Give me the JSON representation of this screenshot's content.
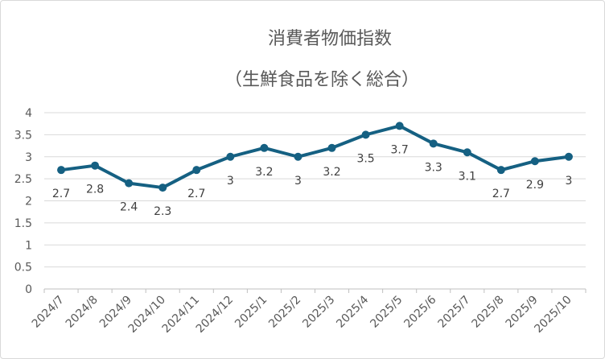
{
  "chart_data": {
    "type": "line",
    "title": [
      "消費者物価指数",
      "（生鮮食品を除く総合）"
    ],
    "categories": [
      "2024/7",
      "2024/8",
      "2024/9",
      "2024/10",
      "2024/11",
      "2024/12",
      "2025/1",
      "2025/2",
      "2025/3",
      "2025/4",
      "2025/5",
      "2025/6",
      "2025/7",
      "2025/8",
      "2025/9",
      "2025/10"
    ],
    "series": [
      {
        "name": "消費者物価指数",
        "values": [
          2.7,
          2.8,
          2.4,
          2.3,
          2.7,
          3,
          3.2,
          3,
          3.2,
          3.5,
          3.7,
          3.3,
          3.1,
          2.7,
          2.9,
          3
        ],
        "color": "#156082"
      }
    ],
    "ylim": [
      0,
      4
    ],
    "yticks": [
      "0",
      "0.5",
      "1",
      "1.5",
      "2",
      "2.5",
      "3",
      "3.5",
      "4"
    ],
    "grid": true,
    "data_labels": true,
    "legend": "none",
    "xlabel": "",
    "ylabel": ""
  }
}
